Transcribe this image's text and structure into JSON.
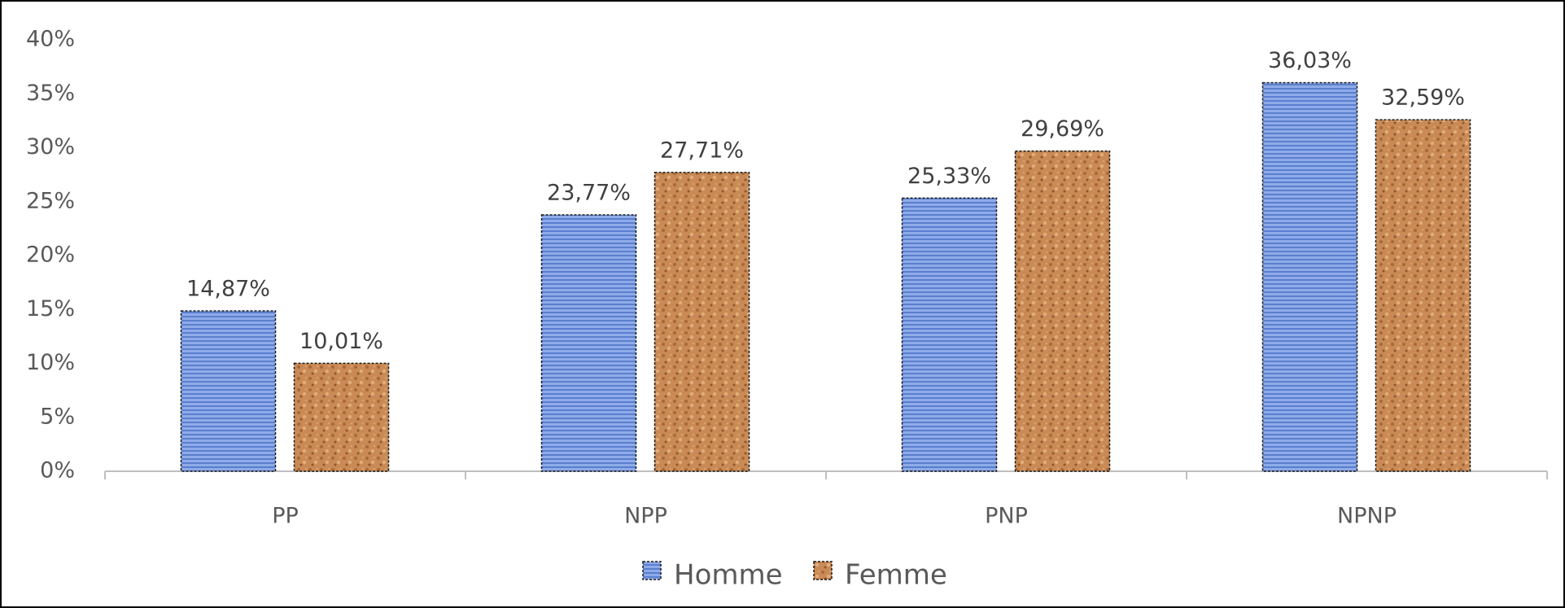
{
  "chart_data": {
    "type": "bar",
    "categories": [
      "PP",
      "NPP",
      "PNP",
      "NPNP"
    ],
    "series": [
      {
        "name": "Homme",
        "color": "#7f9fe0",
        "values": [
          14.87,
          23.77,
          25.33,
          36.03
        ],
        "value_labels": [
          "14,87%",
          "23,77%",
          "25,33%",
          "36,03%"
        ]
      },
      {
        "name": "Femme",
        "color": "#c98a55",
        "values": [
          10.01,
          27.71,
          29.69,
          32.59
        ],
        "value_labels": [
          "10,01%",
          "27,71%",
          "29,69%",
          "32,59%"
        ]
      }
    ],
    "ylim": [
      0,
      40
    ],
    "yticks": [
      {
        "value": 0,
        "label": "0%"
      },
      {
        "value": 5,
        "label": "5%"
      },
      {
        "value": 10,
        "label": "10%"
      },
      {
        "value": 15,
        "label": "15%"
      },
      {
        "value": 20,
        "label": "20%"
      },
      {
        "value": 25,
        "label": "25%"
      },
      {
        "value": 30,
        "label": "30%"
      },
      {
        "value": 35,
        "label": "35%"
      },
      {
        "value": 40,
        "label": "40%"
      }
    ],
    "grid": false,
    "legend": "bottom"
  }
}
